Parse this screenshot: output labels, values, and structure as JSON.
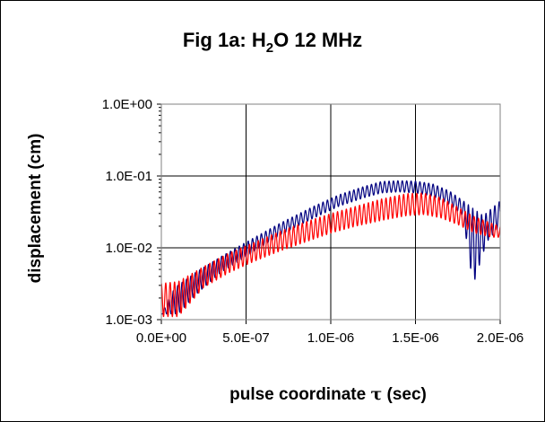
{
  "chart_data": {
    "type": "line",
    "title_prefix": "Fig 1a: H",
    "title_sub": "2",
    "title_suffix": "O 12 MHz",
    "xlabel_prefix": "pulse coordinate ",
    "xlabel_symbol": "τ",
    "xlabel_suffix": " (sec)",
    "ylabel": "displacement (cm)",
    "xlim": [
      0,
      2e-06
    ],
    "ylim": [
      0.001,
      1
    ],
    "yscale": "log",
    "grid": true,
    "x_ticks": [
      0,
      5e-07,
      1e-06,
      1.5e-06,
      2e-06
    ],
    "x_tick_labels": [
      "0.0E+00",
      "5.0E-07",
      "1.0E-06",
      "1.5E-06",
      "2.0E-06"
    ],
    "y_ticks": [
      0.001,
      0.01,
      0.1,
      1
    ],
    "y_tick_labels": [
      "1.0E-03",
      "1.0E-02",
      "1.0E-01",
      "1.0E+00"
    ],
    "series": [
      {
        "color": "#000080",
        "envelope": [
          [
            0.0,
            0.0012
          ],
          [
            8e-08,
            0.0028
          ],
          [
            2e-07,
            0.0045
          ],
          [
            3.5e-07,
            0.0075
          ],
          [
            5e-07,
            0.012
          ],
          [
            7e-07,
            0.022
          ],
          [
            9e-07,
            0.038
          ],
          [
            1.05e-06,
            0.055
          ],
          [
            1.2e-06,
            0.072
          ],
          [
            1.3e-06,
            0.084
          ],
          [
            1.4e-06,
            0.086
          ],
          [
            1.5e-06,
            0.085
          ],
          [
            1.6e-06,
            0.078
          ],
          [
            1.7e-06,
            0.062
          ],
          [
            1.8e-06,
            0.042
          ],
          [
            1.9e-06,
            0.028
          ],
          [
            2e-06,
            0.045
          ]
        ],
        "ripple_dips": [
          [
            0.0,
            0.0012
          ],
          [
            1e-07,
            0.0012
          ],
          [
            2e-07,
            0.0022
          ],
          [
            3.5e-07,
            0.0045
          ],
          [
            5e-07,
            0.0075
          ],
          [
            7e-07,
            0.015
          ],
          [
            9e-07,
            0.026
          ],
          [
            1.05e-06,
            0.038
          ],
          [
            1.2e-06,
            0.05
          ],
          [
            1.3e-06,
            0.058
          ],
          [
            1.4e-06,
            0.06
          ],
          [
            1.5e-06,
            0.058
          ],
          [
            1.6e-06,
            0.052
          ],
          [
            1.7e-06,
            0.04
          ],
          [
            1.78e-06,
            0.028
          ],
          [
            1.84e-06,
            0.003
          ],
          [
            1.88e-06,
            0.006
          ],
          [
            1.92e-06,
            0.012
          ],
          [
            2e-06,
            0.02
          ]
        ],
        "ripple_period": 2.6e-08
      },
      {
        "color": "#ff0000",
        "envelope": [
          [
            0.0,
            0.0032
          ],
          [
            1e-07,
            0.0034
          ],
          [
            2.5e-07,
            0.0055
          ],
          [
            4e-07,
            0.0085
          ],
          [
            5.5e-07,
            0.012
          ],
          [
            7e-07,
            0.017
          ],
          [
            8.5e-07,
            0.023
          ],
          [
            1e-06,
            0.03
          ],
          [
            1.15e-06,
            0.038
          ],
          [
            1.3e-06,
            0.048
          ],
          [
            1.45e-06,
            0.057
          ],
          [
            1.55e-06,
            0.058
          ],
          [
            1.65e-06,
            0.05
          ],
          [
            1.75e-06,
            0.037
          ],
          [
            1.85e-06,
            0.027
          ],
          [
            1.95e-06,
            0.022
          ],
          [
            2e-06,
            0.02
          ]
        ],
        "ripple_dips": [
          [
            0.0,
            0.0011
          ],
          [
            1e-07,
            0.0011
          ],
          [
            2.5e-07,
            0.0028
          ],
          [
            4e-07,
            0.0045
          ],
          [
            5.5e-07,
            0.0065
          ],
          [
            7e-07,
            0.009
          ],
          [
            8.5e-07,
            0.012
          ],
          [
            1e-06,
            0.016
          ],
          [
            1.15e-06,
            0.02
          ],
          [
            1.3e-06,
            0.024
          ],
          [
            1.45e-06,
            0.028
          ],
          [
            1.55e-06,
            0.029
          ],
          [
            1.65e-06,
            0.026
          ],
          [
            1.75e-06,
            0.021
          ],
          [
            1.85e-06,
            0.016
          ],
          [
            1.95e-06,
            0.014
          ],
          [
            2e-06,
            0.014
          ]
        ],
        "ripple_period": 2.6e-08
      }
    ]
  }
}
